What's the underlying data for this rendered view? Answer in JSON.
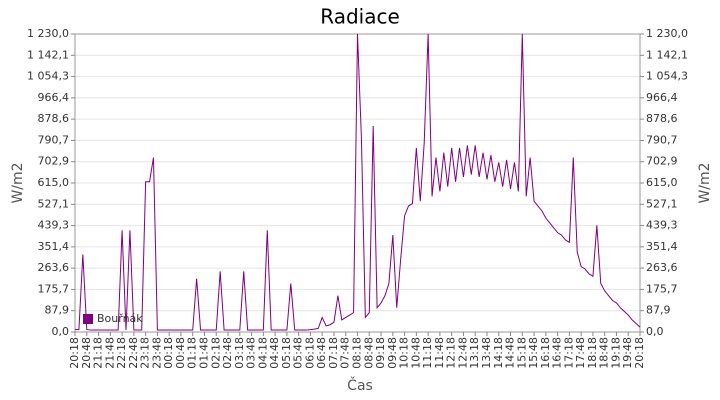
{
  "chart_data": {
    "type": "line",
    "title": "Radiace",
    "x_label": "Čas",
    "y_label": "W/m2",
    "y2_label": "W/m2",
    "categories": [
      "20:18",
      null,
      null,
      "20:48",
      null,
      null,
      "21:18",
      null,
      null,
      "21:48",
      null,
      null,
      "22:18",
      null,
      null,
      "22:48",
      null,
      null,
      "23:18",
      null,
      null,
      "23:48",
      null,
      null,
      "00:18",
      null,
      null,
      "00:48",
      null,
      null,
      "01:18",
      null,
      null,
      "01:48",
      null,
      null,
      "02:18",
      null,
      null,
      "02:48",
      null,
      null,
      "03:18",
      null,
      null,
      "03:48",
      null,
      null,
      "04:18",
      null,
      null,
      "04:48",
      null,
      null,
      "05:18",
      null,
      null,
      "05:48",
      null,
      null,
      "06:18",
      null,
      null,
      "06:48",
      null,
      null,
      "07:18",
      null,
      null,
      "07:48",
      null,
      null,
      "08:18",
      null,
      null,
      "08:48",
      null,
      null,
      "09:18",
      null,
      null,
      "09:48",
      null,
      null,
      "10:18",
      null,
      null,
      "10:48",
      null,
      null,
      "11:18",
      null,
      null,
      "11:48",
      null,
      null,
      "12:18",
      null,
      null,
      "12:48",
      null,
      null,
      "13:18",
      null,
      null,
      "13:48",
      null,
      null,
      "14:18",
      null,
      null,
      "14:48",
      null,
      null,
      "15:18",
      null,
      null,
      "15:48",
      null,
      null,
      "16:18",
      null,
      null,
      "16:48",
      null,
      null,
      "17:18",
      null,
      null,
      "17:48",
      null,
      null,
      "18:18",
      null,
      null,
      "18:48",
      null,
      null,
      "19:18",
      null,
      null,
      "19:48",
      null,
      null,
      "20:18"
    ],
    "series": [
      {
        "name": "Bouřňák",
        "color": "#800080",
        "values": [
          10,
          10,
          320,
          10,
          8,
          8,
          8,
          8,
          8,
          8,
          8,
          8,
          420,
          8,
          420,
          8,
          8,
          8,
          620,
          620,
          720,
          8,
          8,
          8,
          8,
          8,
          8,
          8,
          8,
          8,
          8,
          220,
          8,
          8,
          8,
          8,
          8,
          250,
          8,
          8,
          8,
          8,
          8,
          250,
          8,
          8,
          8,
          8,
          8,
          420,
          8,
          8,
          8,
          8,
          8,
          200,
          8,
          8,
          8,
          8,
          10,
          12,
          15,
          60,
          25,
          30,
          40,
          150,
          50,
          60,
          70,
          80,
          1230,
          800,
          60,
          80,
          850,
          100,
          120,
          150,
          200,
          400,
          100,
          300,
          480,
          520,
          530,
          760,
          540,
          780,
          1230,
          560,
          720,
          580,
          740,
          600,
          760,
          620,
          760,
          640,
          770,
          650,
          770,
          640,
          740,
          630,
          730,
          620,
          700,
          600,
          710,
          590,
          700,
          580,
          1230,
          560,
          720,
          540,
          520,
          500,
          470,
          450,
          430,
          410,
          400,
          380,
          370,
          720,
          330,
          270,
          260,
          240,
          230,
          440,
          200,
          170,
          150,
          130,
          120,
          100,
          85,
          70,
          50,
          35,
          20
        ]
      }
    ],
    "ylim": [
      0,
      1230
    ],
    "yticks": [
      {
        "value": 0,
        "label": "0,0"
      },
      {
        "value": 87.9,
        "label": "87,9"
      },
      {
        "value": 175.7,
        "label": "175,7"
      },
      {
        "value": 263.6,
        "label": "263,6"
      },
      {
        "value": 351.4,
        "label": "351,4"
      },
      {
        "value": 439.3,
        "label": "439,3"
      },
      {
        "value": 527.1,
        "label": "527,1"
      },
      {
        "value": 615,
        "label": "615,0"
      },
      {
        "value": 702.9,
        "label": "702,9"
      },
      {
        "value": 790.7,
        "label": "790,7"
      },
      {
        "value": 878.6,
        "label": "878,6"
      },
      {
        "value": 966.4,
        "label": "966,4"
      },
      {
        "value": 1054.3,
        "label": "1 054,3"
      },
      {
        "value": 1142.1,
        "label": "1 142,1"
      },
      {
        "value": 1230,
        "label": "1 230,0"
      }
    ],
    "grid": true
  }
}
